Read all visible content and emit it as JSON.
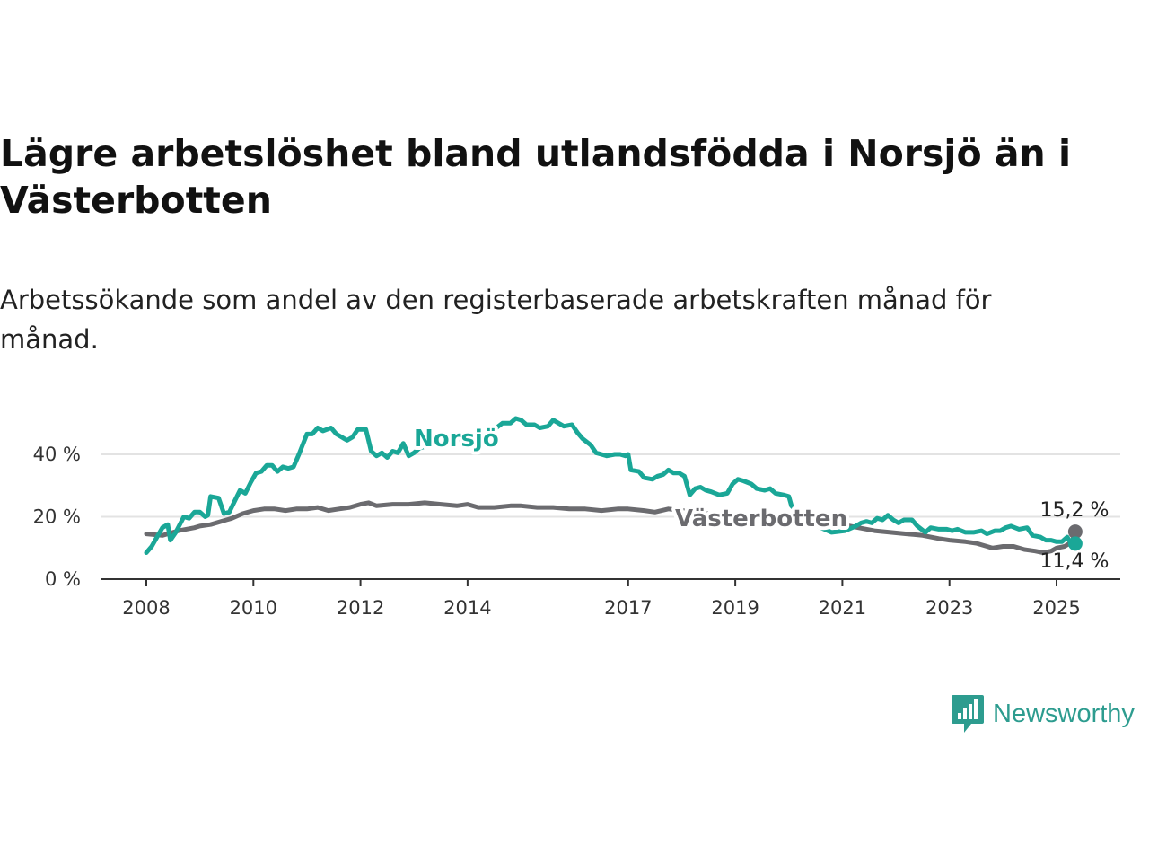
{
  "header": {
    "title": "Lägre arbetslöshet bland utlandsfödda i Norsjö än i Västerbotten",
    "subtitle": "Arbetssökande som andel av den registerbaserade arbetskraften månad för månad."
  },
  "brand": {
    "logo_text": "Newsworthy",
    "logo_icon": "bar-chart-speech-bubble-icon",
    "color": "#2d9c8f"
  },
  "colors": {
    "norsjo": "#1aa797",
    "vasterbotten": "#6b6b6f",
    "gridline": "#e3e3e3",
    "axis": "#333333"
  },
  "chart_data": {
    "type": "line",
    "title": "Lägre arbetslöshet bland utlandsfödda i Norsjö än i Västerbotten",
    "subtitle": "Arbetssökande som andel av den registerbaserade arbetskraften månad för månad.",
    "xlabel": "",
    "ylabel": "",
    "x_range": [
      2008,
      2025.4
    ],
    "ylim": [
      0,
      52
    ],
    "y_ticks": [
      0,
      20,
      40
    ],
    "y_tick_labels": [
      "0 %",
      "20 %",
      "40 %"
    ],
    "x_ticks": [
      2008,
      2010,
      2012,
      2014,
      2017,
      2019,
      2021,
      2023,
      2025
    ],
    "x_tick_labels": [
      "2008",
      "2010",
      "2012",
      "2014",
      "2017",
      "2019",
      "2021",
      "2023",
      "2025"
    ],
    "grid": true,
    "legend": "inline labels",
    "series": [
      {
        "name": "Norsjö",
        "end_label": "11,4 %",
        "points": [
          [
            2008.0,
            8.5
          ],
          [
            2008.1,
            10.5
          ],
          [
            2008.2,
            13.5
          ],
          [
            2008.3,
            16.5
          ],
          [
            2008.4,
            17.5
          ],
          [
            2008.45,
            12.5
          ],
          [
            2008.55,
            15.0
          ],
          [
            2008.7,
            20.0
          ],
          [
            2008.8,
            19.5
          ],
          [
            2008.9,
            21.5
          ],
          [
            2009.0,
            21.5
          ],
          [
            2009.1,
            20.0
          ],
          [
            2009.15,
            20.5
          ],
          [
            2009.2,
            26.5
          ],
          [
            2009.35,
            26.0
          ],
          [
            2009.45,
            21.0
          ],
          [
            2009.55,
            21.5
          ],
          [
            2009.65,
            25.0
          ],
          [
            2009.75,
            28.5
          ],
          [
            2009.85,
            27.5
          ],
          [
            2009.95,
            31.0
          ],
          [
            2010.05,
            34.0
          ],
          [
            2010.15,
            34.5
          ],
          [
            2010.25,
            36.5
          ],
          [
            2010.35,
            36.5
          ],
          [
            2010.45,
            34.5
          ],
          [
            2010.55,
            36.0
          ],
          [
            2010.65,
            35.5
          ],
          [
            2010.75,
            36.0
          ],
          [
            2010.85,
            40.0
          ],
          [
            2011.0,
            46.5
          ],
          [
            2011.1,
            46.5
          ],
          [
            2011.2,
            48.5
          ],
          [
            2011.3,
            47.5
          ],
          [
            2011.45,
            48.5
          ],
          [
            2011.55,
            46.5
          ],
          [
            2011.65,
            45.5
          ],
          [
            2011.75,
            44.5
          ],
          [
            2011.85,
            45.5
          ],
          [
            2011.95,
            48.0
          ],
          [
            2012.1,
            48.0
          ],
          [
            2012.2,
            41.0
          ],
          [
            2012.3,
            39.5
          ],
          [
            2012.4,
            40.5
          ],
          [
            2012.5,
            39.0
          ],
          [
            2012.6,
            41.0
          ],
          [
            2012.7,
            40.5
          ],
          [
            2012.8,
            43.5
          ],
          [
            2012.9,
            39.5
          ],
          [
            2013.0,
            40.5
          ],
          [
            2013.1,
            42.0
          ],
          [
            2013.2,
            42.5
          ],
          [
            2013.3,
            43.5
          ],
          [
            2013.8,
            44.5
          ],
          [
            2014.5,
            48.0
          ],
          [
            2014.65,
            50.0
          ],
          [
            2014.8,
            50.0
          ],
          [
            2014.9,
            51.5
          ],
          [
            2015.0,
            51.0
          ],
          [
            2015.1,
            49.5
          ],
          [
            2015.25,
            49.5
          ],
          [
            2015.35,
            48.5
          ],
          [
            2015.5,
            49.0
          ],
          [
            2015.6,
            51.0
          ],
          [
            2015.7,
            50.0
          ],
          [
            2015.8,
            49.0
          ],
          [
            2015.95,
            49.5
          ],
          [
            2016.05,
            47.0
          ],
          [
            2016.15,
            45.0
          ],
          [
            2016.3,
            43.0
          ],
          [
            2016.4,
            40.5
          ],
          [
            2016.5,
            40.0
          ],
          [
            2016.6,
            39.5
          ],
          [
            2016.75,
            40.0
          ],
          [
            2016.85,
            40.0
          ],
          [
            2016.95,
            39.5
          ],
          [
            2017.0,
            40.0
          ],
          [
            2017.05,
            35.0
          ],
          [
            2017.2,
            34.5
          ],
          [
            2017.3,
            32.5
          ],
          [
            2017.45,
            32.0
          ],
          [
            2017.55,
            33.0
          ],
          [
            2017.65,
            33.5
          ],
          [
            2017.75,
            35.0
          ],
          [
            2017.85,
            34.0
          ],
          [
            2017.95,
            34.0
          ],
          [
            2018.05,
            33.0
          ],
          [
            2018.15,
            27.0
          ],
          [
            2018.25,
            29.0
          ],
          [
            2018.35,
            29.5
          ],
          [
            2018.45,
            28.5
          ],
          [
            2018.55,
            28.0
          ],
          [
            2018.7,
            27.0
          ],
          [
            2018.85,
            27.5
          ],
          [
            2018.95,
            30.5
          ],
          [
            2019.05,
            32.0
          ],
          [
            2019.15,
            31.5
          ],
          [
            2019.3,
            30.5
          ],
          [
            2019.4,
            29.0
          ],
          [
            2019.55,
            28.5
          ],
          [
            2019.65,
            29.0
          ],
          [
            2019.75,
            27.5
          ],
          [
            2019.9,
            27.0
          ],
          [
            2020.0,
            26.5
          ],
          [
            2020.05,
            23.5
          ],
          [
            2020.2,
            21.0
          ],
          [
            2020.4,
            18.0
          ],
          [
            2020.6,
            16.5
          ],
          [
            2020.8,
            15.0
          ],
          [
            2021.05,
            15.5
          ],
          [
            2021.25,
            17.0
          ],
          [
            2021.35,
            18.0
          ],
          [
            2021.45,
            18.5
          ],
          [
            2021.55,
            18.0
          ],
          [
            2021.65,
            19.5
          ],
          [
            2021.75,
            19.0
          ],
          [
            2021.85,
            20.5
          ],
          [
            2021.95,
            19.0
          ],
          [
            2022.05,
            18.0
          ],
          [
            2022.15,
            19.0
          ],
          [
            2022.3,
            19.0
          ],
          [
            2022.4,
            17.0
          ],
          [
            2022.55,
            15.0
          ],
          [
            2022.65,
            16.5
          ],
          [
            2022.8,
            16.0
          ],
          [
            2022.95,
            16.0
          ],
          [
            2023.05,
            15.5
          ],
          [
            2023.15,
            16.0
          ],
          [
            2023.3,
            15.0
          ],
          [
            2023.45,
            15.0
          ],
          [
            2023.6,
            15.5
          ],
          [
            2023.7,
            14.5
          ],
          [
            2023.85,
            15.5
          ],
          [
            2023.95,
            15.5
          ],
          [
            2024.05,
            16.5
          ],
          [
            2024.15,
            17.0
          ],
          [
            2024.3,
            16.0
          ],
          [
            2024.45,
            16.5
          ],
          [
            2024.55,
            14.0
          ],
          [
            2024.7,
            13.5
          ],
          [
            2024.8,
            12.5
          ],
          [
            2024.9,
            12.5
          ],
          [
            2025.0,
            12.0
          ],
          [
            2025.1,
            12.0
          ],
          [
            2025.2,
            13.5
          ],
          [
            2025.25,
            12.0
          ],
          [
            2025.3,
            11.0
          ],
          [
            2025.35,
            11.4
          ]
        ]
      },
      {
        "name": "Västerbotten",
        "end_label": "15,2 %",
        "points": [
          [
            2008.0,
            14.5
          ],
          [
            2008.3,
            14.0
          ],
          [
            2008.6,
            15.5
          ],
          [
            2008.9,
            16.5
          ],
          [
            2009.0,
            17.0
          ],
          [
            2009.2,
            17.5
          ],
          [
            2009.4,
            18.5
          ],
          [
            2009.6,
            19.5
          ],
          [
            2009.8,
            21.0
          ],
          [
            2010.0,
            22.0
          ],
          [
            2010.2,
            22.5
          ],
          [
            2010.4,
            22.5
          ],
          [
            2010.6,
            22.0
          ],
          [
            2010.8,
            22.5
          ],
          [
            2011.0,
            22.5
          ],
          [
            2011.2,
            23.0
          ],
          [
            2011.4,
            22.0
          ],
          [
            2011.6,
            22.5
          ],
          [
            2011.8,
            23.0
          ],
          [
            2012.0,
            24.0
          ],
          [
            2012.15,
            24.5
          ],
          [
            2012.3,
            23.5
          ],
          [
            2012.6,
            24.0
          ],
          [
            2012.9,
            24.0
          ],
          [
            2013.2,
            24.5
          ],
          [
            2013.5,
            24.0
          ],
          [
            2013.8,
            23.5
          ],
          [
            2014.0,
            24.0
          ],
          [
            2014.2,
            23.0
          ],
          [
            2014.5,
            23.0
          ],
          [
            2014.8,
            23.5
          ],
          [
            2015.0,
            23.5
          ],
          [
            2015.3,
            23.0
          ],
          [
            2015.6,
            23.0
          ],
          [
            2015.9,
            22.5
          ],
          [
            2016.2,
            22.5
          ],
          [
            2016.5,
            22.0
          ],
          [
            2016.8,
            22.5
          ],
          [
            2017.0,
            22.5
          ],
          [
            2017.3,
            22.0
          ],
          [
            2017.5,
            21.5
          ],
          [
            2017.75,
            22.5
          ],
          [
            2018.0,
            22.0
          ],
          [
            2018.5,
            21.0
          ],
          [
            2019.0,
            20.0
          ],
          [
            2019.5,
            19.5
          ],
          [
            2020.0,
            19.0
          ],
          [
            2020.5,
            18.0
          ],
          [
            2021.0,
            17.5
          ],
          [
            2021.3,
            16.5
          ],
          [
            2021.6,
            15.5
          ],
          [
            2021.9,
            15.0
          ],
          [
            2022.2,
            14.5
          ],
          [
            2022.5,
            14.0
          ],
          [
            2022.8,
            13.0
          ],
          [
            2023.0,
            12.5
          ],
          [
            2023.3,
            12.0
          ],
          [
            2023.5,
            11.5
          ],
          [
            2023.7,
            10.5
          ],
          [
            2023.8,
            10.0
          ],
          [
            2024.0,
            10.5
          ],
          [
            2024.2,
            10.5
          ],
          [
            2024.4,
            9.5
          ],
          [
            2024.6,
            9.0
          ],
          [
            2024.75,
            8.5
          ],
          [
            2024.9,
            9.0
          ],
          [
            2025.0,
            10.0
          ],
          [
            2025.15,
            10.5
          ],
          [
            2025.25,
            11.5
          ],
          [
            2025.3,
            12.5
          ],
          [
            2025.35,
            15.2
          ]
        ]
      }
    ]
  }
}
